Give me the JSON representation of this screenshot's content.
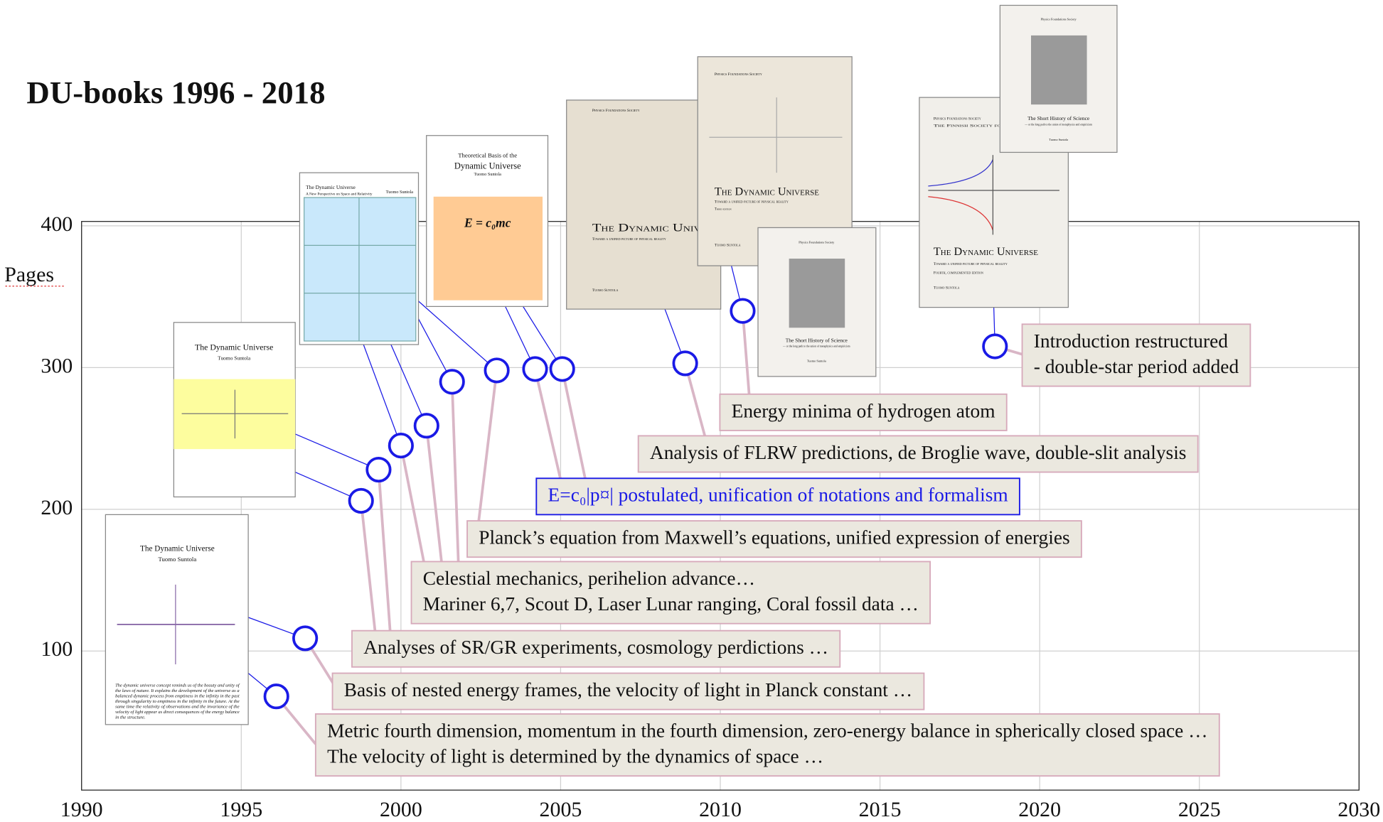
{
  "chart_data": {
    "type": "scatter",
    "title": "DU-books 1996 - 2018",
    "y_label": "Pages",
    "x": [
      1996.1,
      1997.0,
      1998.75,
      1999.3,
      2000.0,
      2000.8,
      2001.6,
      2003.0,
      2004.2,
      2005.05,
      2008.9,
      2010.7,
      2018.6
    ],
    "values": [
      68,
      109,
      206,
      228,
      245,
      259,
      290,
      298,
      299,
      299,
      303,
      340,
      315
    ],
    "color": "#1a1ae6",
    "xlim": [
      1990,
      2030
    ],
    "xticks": [
      1990,
      1995,
      2000,
      2005,
      2010,
      2015,
      2020,
      2025,
      2030
    ],
    "ylim": [
      0,
      400
    ],
    "yticks": [
      100,
      200,
      300,
      400
    ],
    "grid": true,
    "annotations": [
      {
        "lines": [
          "Metric fourth dimension, momentum in the fourth dimension, zero-energy balance in spherically closed space …",
          "The velocity of light is determined by the dynamics of space …"
        ]
      },
      {
        "lines": [
          "Basis of nested energy frames, the velocity of light in Planck constant …"
        ]
      },
      {
        "lines": [
          "Analyses of SR/GR experiments, cosmology perdictions …"
        ]
      },
      {
        "lines": [
          "Celestial mechanics, perihelion advance…",
          "Mariner 6,7, Scout D, Laser Lunar ranging, Coral fossil data …"
        ]
      },
      {
        "lines": [
          "Planck’s equation from Maxwell’s equations, unified expression of energies"
        ]
      },
      {
        "lines": [
          "E=c₀|p¤| postulated, unification of notations and formalism"
        ],
        "color": "#1a1ae6"
      },
      {
        "lines": [
          "Analysis of FLRW predictions, de Broglie wave, double-slit analysis"
        ]
      },
      {
        "lines": [
          "Energy minima of hydrogen atom"
        ]
      },
      {
        "lines": [
          "Introduction restructured",
          "- double-star period added"
        ]
      }
    ],
    "covers": [
      {
        "texts": [
          "The Dynamic Universe",
          "Tuomo Suntola",
          "The dynamic universe concept reminds us of the beauty and unity of",
          "the laws of nature. It explains the development of the universe as a",
          "balanced dynamic process from emptiness in the infinity in the past",
          "through singularity to emptiness in the infinity in the future. At the",
          "same time the relativity of observations and the invariance of the",
          "velocity of light appear as direct consequences of the energy balance",
          "in the structure."
        ]
      },
      {
        "texts": [
          "The Dynamic Universe",
          "Tuomo Suntola"
        ]
      },
      {
        "texts": [
          "The Dynamic Universe",
          "A New Perspective on Space and Relativity",
          "Tuomo Suntola"
        ]
      },
      {
        "texts": [
          "Theoretical Basis of the",
          "Dynamic Universe",
          "Tuomo Suntola",
          "E = c₀mc"
        ]
      },
      {
        "texts": [
          "Physics Foundations Society",
          "The Dynamic Universe",
          "Toward a unified picture of physical reality",
          "Tuomo Suntola"
        ]
      },
      {
        "texts": [
          "Physics Foundations Society",
          "The Dynamic Universe",
          "Toward a unified picture of physical reality",
          "Third edition",
          "Tuomo Suntola"
        ]
      },
      {
        "texts": [
          "Physics Foundations Society",
          "The Short History of Science",
          "— or the long path to the union of metaphysics and empiricism",
          "Tuomo Suntola"
        ]
      },
      {
        "texts": [
          "Physics Foundations Society",
          "The Finnish Society for Natural Philosophy",
          "The Dynamic Universe",
          "Toward a unified picture of physical reality",
          "Fourth, complemented edition",
          "Tuomo Suntola"
        ]
      },
      {
        "texts": [
          "Physics Foundations Society",
          "The Short History of Science",
          "— or the long path to the union of metaphysics and empiricism",
          "Tuomo Suntola"
        ]
      }
    ]
  }
}
